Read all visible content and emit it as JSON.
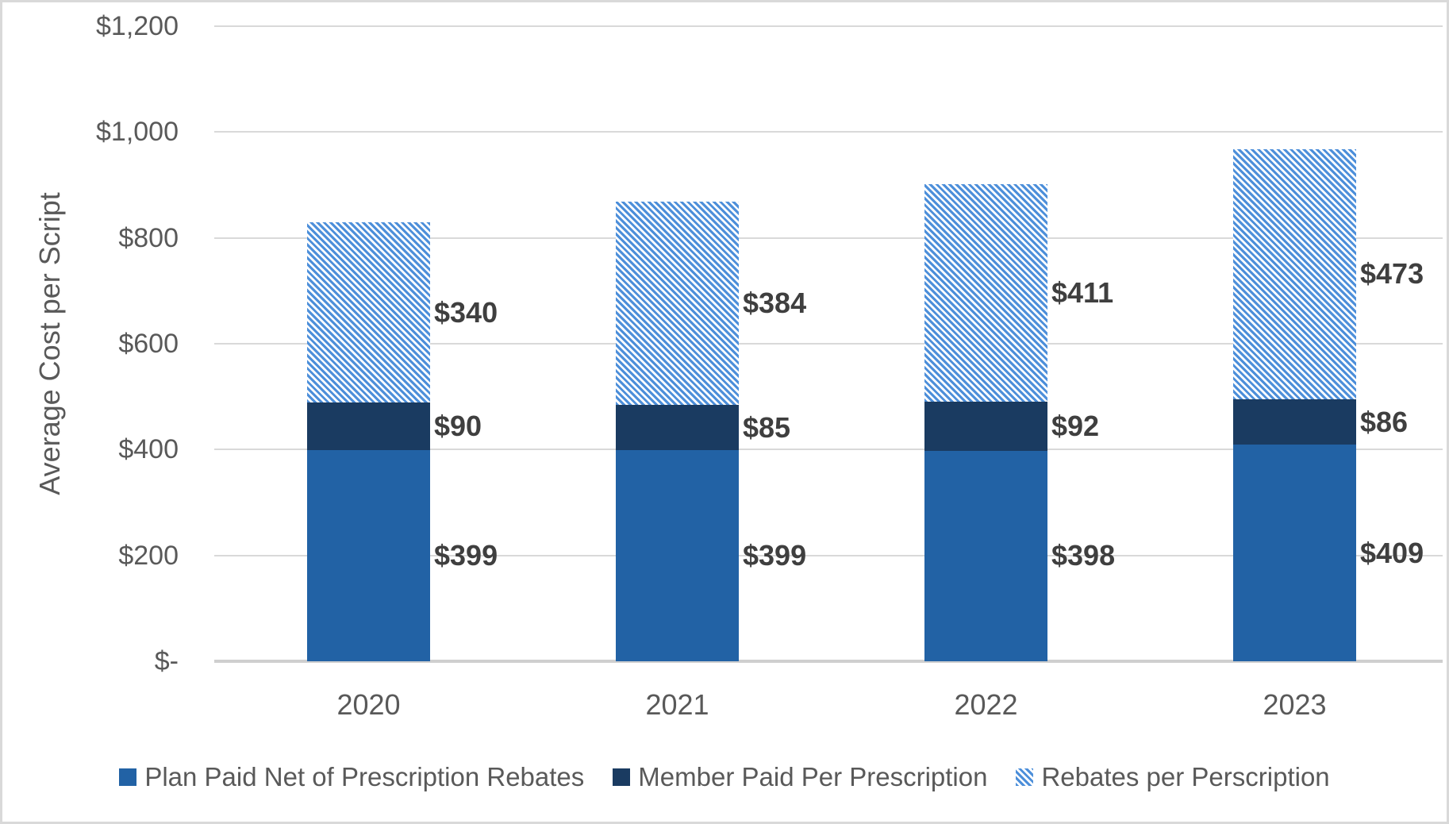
{
  "chart_data": {
    "type": "bar",
    "stacked": true,
    "ylabel": "Average Cost per Script",
    "xlabel": "",
    "categories": [
      "2020",
      "2021",
      "2022",
      "2023"
    ],
    "series": [
      {
        "name": "Plan Paid Net of Prescription Rebates",
        "values": [
          399,
          399,
          398,
          409
        ],
        "labels": [
          "$399",
          "$399",
          "$398",
          "$409"
        ],
        "fill": "solid",
        "color": "#2262A5"
      },
      {
        "name": "Member Paid Per Prescription",
        "values": [
          90,
          85,
          92,
          86
        ],
        "labels": [
          "$90",
          "$85",
          "$92",
          "$86"
        ],
        "fill": "solid",
        "color": "#1A3B61"
      },
      {
        "name": "Rebates per Perscription",
        "values": [
          340,
          384,
          411,
          473
        ],
        "labels": [
          "$340",
          "$384",
          "$411",
          "$473"
        ],
        "fill": "hatch",
        "color": "#4D8FDA",
        "hatch_bg": "#FFFFFF"
      }
    ],
    "yticks": [
      {
        "label": "$-",
        "value": 0
      },
      {
        "label": "$200",
        "value": 200
      },
      {
        "label": "$400",
        "value": 400
      },
      {
        "label": "$600",
        "value": 600
      },
      {
        "label": "$800",
        "value": 800
      },
      {
        "label": "$1,000",
        "value": 1000
      },
      {
        "label": "$1,200",
        "value": 1200
      }
    ],
    "ylim": [
      0,
      1200
    ],
    "grid": true,
    "legend_position": "bottom",
    "colors": {
      "grid": "#D9D9D9",
      "axis_line": "#CFCFCF",
      "tick_text": "#595959",
      "data_label_text": "#3F3F3F",
      "border": "#D9D9D9"
    }
  }
}
